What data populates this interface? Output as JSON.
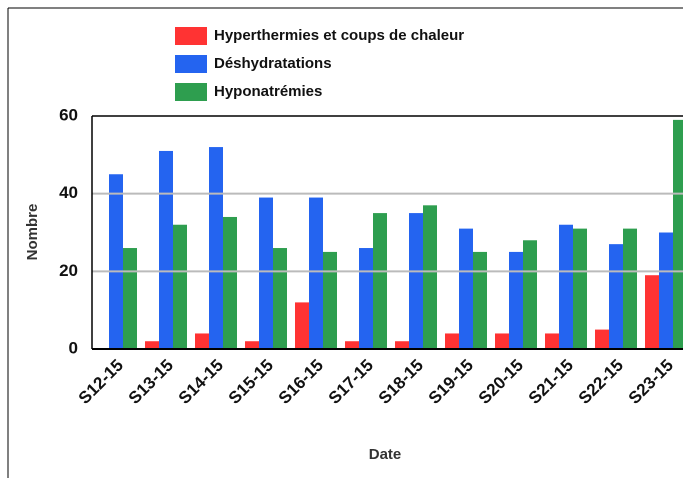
{
  "chart_data": {
    "type": "bar",
    "x_label": "Date",
    "y_label": "Nombre",
    "categories": [
      "S12-15",
      "S13-15",
      "S14-15",
      "S15-15",
      "S16-15",
      "S17-15",
      "S18-15",
      "S19-15",
      "S20-15",
      "S21-15",
      "S22-15",
      "S23-15"
    ],
    "series": [
      {
        "name": "Hyperthermies et coups de chaleur",
        "color": "#ff3333",
        "values": [
          0,
          2,
          4,
          2,
          12,
          2,
          2,
          4,
          4,
          4,
          5,
          19
        ]
      },
      {
        "name": "Déshydratations",
        "color": "#2464f0",
        "values": [
          45,
          51,
          52,
          39,
          39,
          26,
          35,
          31,
          25,
          32,
          27,
          30
        ]
      },
      {
        "name": "Hyponatrémies",
        "color": "#2e9e4f",
        "values": [
          26,
          32,
          34,
          26,
          25,
          35,
          37,
          25,
          28,
          31,
          31,
          59
        ]
      }
    ],
    "ylim": [
      0,
      60
    ],
    "yticks": [
      0,
      20,
      40,
      60
    ],
    "grid": true
  }
}
